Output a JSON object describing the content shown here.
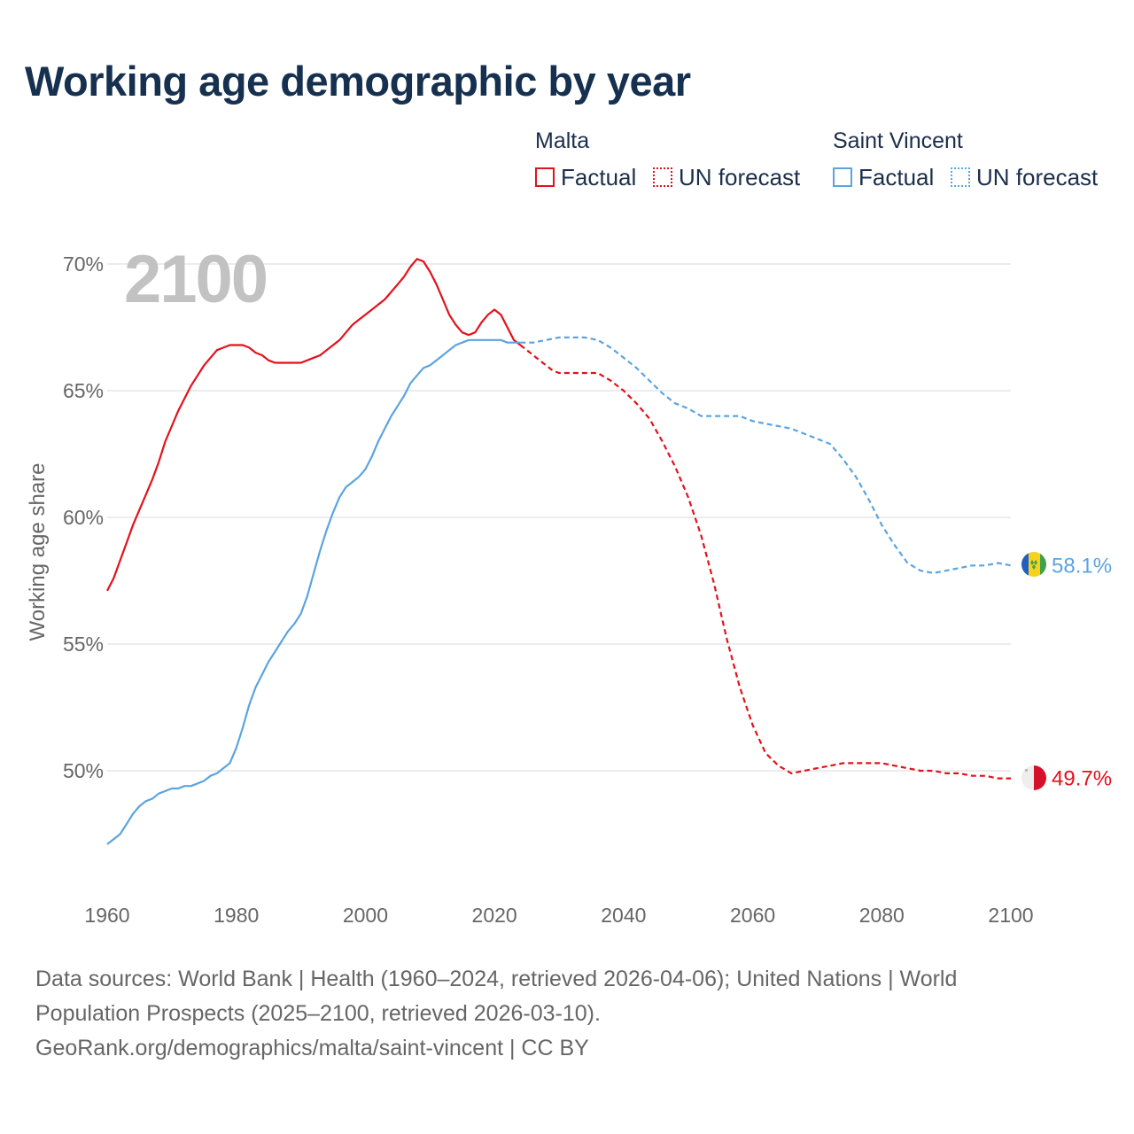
{
  "title": "Working age demographic by year",
  "year_label": "2100",
  "legend": {
    "groups": [
      {
        "name": "Malta",
        "color": "#e3111b",
        "factual_label": "Factual",
        "forecast_label": "UN forecast"
      },
      {
        "name": "Saint Vincent",
        "color": "#5ba4e0",
        "factual_label": "Factual",
        "forecast_label": "UN forecast"
      }
    ]
  },
  "footer": {
    "line1": "Data sources: World Bank | Health (1960–2024, retrieved 2026-04-06); United Nations | World",
    "line2": "Population Prospects (2025–2100, retrieved 2026-03-10).",
    "line3": "GeoRank.org/demographics/malta/saint-vincent | CC BY"
  },
  "chart_data": {
    "type": "line",
    "title": "Working age demographic by year",
    "xlabel": "",
    "ylabel": "Working age share",
    "xlim": [
      1960,
      2100
    ],
    "ylim": [
      45.5,
      70.5
    ],
    "x_ticks": [
      1960,
      1980,
      2000,
      2020,
      2040,
      2060,
      2080,
      2100
    ],
    "x_tick_labels": [
      "1960",
      "1980",
      "2000",
      "2020",
      "2040",
      "2060",
      "2080",
      "2100"
    ],
    "y_ticks": [
      50,
      55,
      60,
      65,
      70
    ],
    "y_tick_labels": [
      "50%",
      "55%",
      "60%",
      "65%",
      "70%"
    ],
    "grid": true,
    "series": [
      {
        "name": "Malta",
        "kind": "Factual",
        "color": "#e3111b",
        "style": "solid",
        "points": [
          [
            1960,
            57.1
          ],
          [
            1961,
            57.6
          ],
          [
            1962,
            58.3
          ],
          [
            1963,
            59.0
          ],
          [
            1964,
            59.7
          ],
          [
            1965,
            60.3
          ],
          [
            1966,
            60.9
          ],
          [
            1967,
            61.5
          ],
          [
            1968,
            62.2
          ],
          [
            1969,
            63.0
          ],
          [
            1970,
            63.6
          ],
          [
            1971,
            64.2
          ],
          [
            1972,
            64.7
          ],
          [
            1973,
            65.2
          ],
          [
            1974,
            65.6
          ],
          [
            1975,
            66.0
          ],
          [
            1976,
            66.3
          ],
          [
            1977,
            66.6
          ],
          [
            1978,
            66.7
          ],
          [
            1979,
            66.8
          ],
          [
            1980,
            66.8
          ],
          [
            1981,
            66.8
          ],
          [
            1982,
            66.7
          ],
          [
            1983,
            66.5
          ],
          [
            1984,
            66.4
          ],
          [
            1985,
            66.2
          ],
          [
            1986,
            66.1
          ],
          [
            1987,
            66.1
          ],
          [
            1988,
            66.1
          ],
          [
            1989,
            66.1
          ],
          [
            1990,
            66.1
          ],
          [
            1991,
            66.2
          ],
          [
            1992,
            66.3
          ],
          [
            1993,
            66.4
          ],
          [
            1994,
            66.6
          ],
          [
            1995,
            66.8
          ],
          [
            1996,
            67.0
          ],
          [
            1997,
            67.3
          ],
          [
            1998,
            67.6
          ],
          [
            1999,
            67.8
          ],
          [
            2000,
            68.0
          ],
          [
            2001,
            68.2
          ],
          [
            2002,
            68.4
          ],
          [
            2003,
            68.6
          ],
          [
            2004,
            68.9
          ],
          [
            2005,
            69.2
          ],
          [
            2006,
            69.5
          ],
          [
            2007,
            69.9
          ],
          [
            2008,
            70.2
          ],
          [
            2009,
            70.1
          ],
          [
            2010,
            69.7
          ],
          [
            2011,
            69.2
          ],
          [
            2012,
            68.6
          ],
          [
            2013,
            68.0
          ],
          [
            2014,
            67.6
          ],
          [
            2015,
            67.3
          ],
          [
            2016,
            67.2
          ],
          [
            2017,
            67.3
          ],
          [
            2018,
            67.7
          ],
          [
            2019,
            68.0
          ],
          [
            2020,
            68.2
          ],
          [
            2021,
            68.0
          ],
          [
            2022,
            67.5
          ],
          [
            2023,
            67.0
          ],
          [
            2024,
            66.8
          ]
        ]
      },
      {
        "name": "Malta",
        "kind": "UN forecast",
        "color": "#e3111b",
        "style": "dashed",
        "points": [
          [
            2024,
            66.8
          ],
          [
            2025,
            66.6
          ],
          [
            2026,
            66.4
          ],
          [
            2027,
            66.2
          ],
          [
            2028,
            66.0
          ],
          [
            2029,
            65.8
          ],
          [
            2030,
            65.7
          ],
          [
            2032,
            65.7
          ],
          [
            2034,
            65.7
          ],
          [
            2036,
            65.7
          ],
          [
            2038,
            65.4
          ],
          [
            2040,
            65.0
          ],
          [
            2042,
            64.5
          ],
          [
            2044,
            63.9
          ],
          [
            2046,
            63.0
          ],
          [
            2048,
            62.0
          ],
          [
            2050,
            60.8
          ],
          [
            2052,
            59.3
          ],
          [
            2054,
            57.4
          ],
          [
            2056,
            55.2
          ],
          [
            2058,
            53.3
          ],
          [
            2060,
            51.8
          ],
          [
            2062,
            50.7
          ],
          [
            2064,
            50.2
          ],
          [
            2066,
            49.9
          ],
          [
            2068,
            50.0
          ],
          [
            2070,
            50.1
          ],
          [
            2072,
            50.2
          ],
          [
            2074,
            50.3
          ],
          [
            2076,
            50.3
          ],
          [
            2078,
            50.3
          ],
          [
            2080,
            50.3
          ],
          [
            2082,
            50.2
          ],
          [
            2084,
            50.1
          ],
          [
            2086,
            50.0
          ],
          [
            2088,
            50.0
          ],
          [
            2090,
            49.9
          ],
          [
            2092,
            49.9
          ],
          [
            2094,
            49.8
          ],
          [
            2096,
            49.8
          ],
          [
            2098,
            49.7
          ],
          [
            2100,
            49.7
          ]
        ]
      },
      {
        "name": "Saint Vincent",
        "kind": "Factual",
        "color": "#5ba4e0",
        "style": "solid",
        "points": [
          [
            1960,
            47.1
          ],
          [
            1961,
            47.3
          ],
          [
            1962,
            47.5
          ],
          [
            1963,
            47.9
          ],
          [
            1964,
            48.3
          ],
          [
            1965,
            48.6
          ],
          [
            1966,
            48.8
          ],
          [
            1967,
            48.9
          ],
          [
            1968,
            49.1
          ],
          [
            1969,
            49.2
          ],
          [
            1970,
            49.3
          ],
          [
            1971,
            49.3
          ],
          [
            1972,
            49.4
          ],
          [
            1973,
            49.4
          ],
          [
            1974,
            49.5
          ],
          [
            1975,
            49.6
          ],
          [
            1976,
            49.8
          ],
          [
            1977,
            49.9
          ],
          [
            1978,
            50.1
          ],
          [
            1979,
            50.3
          ],
          [
            1980,
            50.9
          ],
          [
            1981,
            51.7
          ],
          [
            1982,
            52.6
          ],
          [
            1983,
            53.3
          ],
          [
            1984,
            53.8
          ],
          [
            1985,
            54.3
          ],
          [
            1986,
            54.7
          ],
          [
            1987,
            55.1
          ],
          [
            1988,
            55.5
          ],
          [
            1989,
            55.8
          ],
          [
            1990,
            56.2
          ],
          [
            1991,
            56.9
          ],
          [
            1992,
            57.8
          ],
          [
            1993,
            58.7
          ],
          [
            1994,
            59.5
          ],
          [
            1995,
            60.2
          ],
          [
            1996,
            60.8
          ],
          [
            1997,
            61.2
          ],
          [
            1998,
            61.4
          ],
          [
            1999,
            61.6
          ],
          [
            2000,
            61.9
          ],
          [
            2001,
            62.4
          ],
          [
            2002,
            63.0
          ],
          [
            2003,
            63.5
          ],
          [
            2004,
            64.0
          ],
          [
            2005,
            64.4
          ],
          [
            2006,
            64.8
          ],
          [
            2007,
            65.3
          ],
          [
            2008,
            65.6
          ],
          [
            2009,
            65.9
          ],
          [
            2010,
            66.0
          ],
          [
            2011,
            66.2
          ],
          [
            2012,
            66.4
          ],
          [
            2013,
            66.6
          ],
          [
            2014,
            66.8
          ],
          [
            2015,
            66.9
          ],
          [
            2016,
            67.0
          ],
          [
            2017,
            67.0
          ],
          [
            2018,
            67.0
          ],
          [
            2019,
            67.0
          ],
          [
            2020,
            67.0
          ],
          [
            2021,
            67.0
          ],
          [
            2022,
            66.9
          ],
          [
            2023,
            66.9
          ],
          [
            2024,
            66.9
          ]
        ]
      },
      {
        "name": "Saint Vincent",
        "kind": "UN forecast",
        "color": "#5ba4e0",
        "style": "dashed",
        "points": [
          [
            2024,
            66.9
          ],
          [
            2026,
            66.9
          ],
          [
            2028,
            67.0
          ],
          [
            2030,
            67.1
          ],
          [
            2032,
            67.1
          ],
          [
            2034,
            67.1
          ],
          [
            2036,
            67.0
          ],
          [
            2038,
            66.7
          ],
          [
            2040,
            66.3
          ],
          [
            2042,
            65.9
          ],
          [
            2044,
            65.4
          ],
          [
            2046,
            64.9
          ],
          [
            2048,
            64.5
          ],
          [
            2050,
            64.3
          ],
          [
            2052,
            64.0
          ],
          [
            2054,
            64.0
          ],
          [
            2056,
            64.0
          ],
          [
            2058,
            64.0
          ],
          [
            2060,
            63.8
          ],
          [
            2062,
            63.7
          ],
          [
            2064,
            63.6
          ],
          [
            2066,
            63.5
          ],
          [
            2068,
            63.3
          ],
          [
            2070,
            63.1
          ],
          [
            2072,
            62.9
          ],
          [
            2074,
            62.3
          ],
          [
            2076,
            61.6
          ],
          [
            2078,
            60.7
          ],
          [
            2080,
            59.7
          ],
          [
            2082,
            58.9
          ],
          [
            2084,
            58.2
          ],
          [
            2086,
            57.9
          ],
          [
            2088,
            57.8
          ],
          [
            2090,
            57.9
          ],
          [
            2092,
            58.0
          ],
          [
            2094,
            58.1
          ],
          [
            2096,
            58.1
          ],
          [
            2098,
            58.2
          ],
          [
            2100,
            58.1
          ]
        ]
      }
    ],
    "end_labels": [
      {
        "series": "Saint Vincent",
        "value": 58.1,
        "label": "58.1%",
        "color": "#5ba4e0"
      },
      {
        "series": "Malta",
        "value": 49.7,
        "label": "49.7%",
        "color": "#e3111b"
      }
    ]
  }
}
